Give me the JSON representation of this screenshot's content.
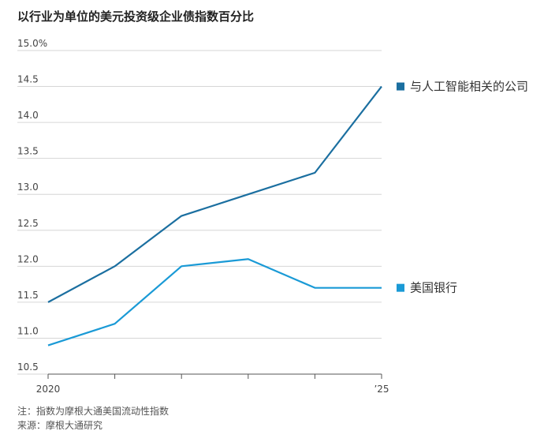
{
  "chart_data": {
    "type": "line",
    "title": "以行业为单位的美元投资级企业债指数百分比",
    "x": [
      2020,
      2021,
      2022,
      2023,
      2024,
      2025
    ],
    "x_tick_labels": [
      "2020",
      "",
      "",
      "",
      "",
      "’25"
    ],
    "ylim": [
      10.5,
      15.0
    ],
    "y_ticks": [
      10.5,
      11.0,
      11.5,
      12.0,
      12.5,
      13.0,
      13.5,
      14.0,
      14.5,
      15.0
    ],
    "y_tick_labels": [
      "10.5",
      "11.0",
      "11.5",
      "12.0",
      "12.5",
      "13.0",
      "13.5",
      "14.0",
      "14.5",
      "15.0%"
    ],
    "grid": true,
    "legend_placement": "right",
    "series": [
      {
        "name": "与人工智能相关的公司",
        "color": "#1b6fa0",
        "values": [
          11.5,
          12.0,
          12.7,
          13.0,
          13.3,
          14.5
        ]
      },
      {
        "name": "美国银行",
        "color": "#1a9ad6",
        "values": [
          10.9,
          11.2,
          12.0,
          12.1,
          11.7,
          11.7
        ]
      }
    ],
    "notes": [
      "注：指数为摩根大通美国流动性指数",
      "来源：摩根大通研究"
    ]
  }
}
